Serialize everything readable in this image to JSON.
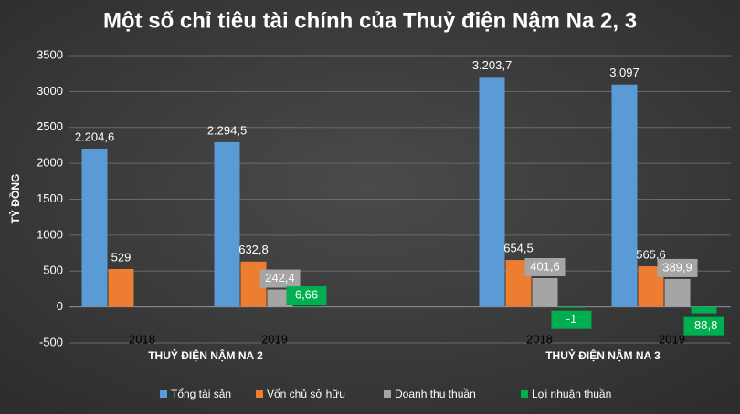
{
  "chart_data": {
    "type": "bar",
    "title": "Một số chỉ tiêu tài chính của Thuỷ điện Nậm Na 2, 3",
    "y_label": "TỶ ĐỒNG",
    "categories": [
      "2018",
      "2019",
      "2018",
      "2019"
    ],
    "category_groups": [
      "THUỶ ĐIỆN NẬM NA 2",
      "THUỶ ĐIỆN NẬM NA 3"
    ],
    "ylim": [
      -500,
      3500
    ],
    "yticks": [
      -500,
      0,
      500,
      1000,
      1500,
      2000,
      2500,
      3000,
      3500
    ],
    "grid": true,
    "legend": "bottom",
    "series": [
      {
        "name": "Tổng tài sản",
        "color": "#5b9bd5",
        "values": [
          2204.6,
          2294.5,
          3203.7,
          3097
        ],
        "value_labels": [
          "2.204,6",
          "2.294,5",
          "3.203,7",
          "3.097"
        ]
      },
      {
        "name": "Vốn chủ sở hữu",
        "color": "#ed7d31",
        "values": [
          529,
          632.8,
          654.5,
          565.6
        ],
        "value_labels": [
          "529",
          "632,8",
          "654,5",
          "565,6"
        ]
      },
      {
        "name": "Doanh thu thuần",
        "color": "#a5a5a5",
        "values": [
          null,
          242.4,
          401.6,
          389.9
        ],
        "value_labels": [
          null,
          "242,4",
          "401,6",
          "389,9"
        ]
      },
      {
        "name": "Lợi nhuận thuần",
        "color": "#00b050",
        "values": [
          null,
          6.66,
          -1,
          -88.8
        ],
        "value_labels": [
          null,
          "6,66",
          "-1",
          "-88,8"
        ]
      }
    ]
  }
}
